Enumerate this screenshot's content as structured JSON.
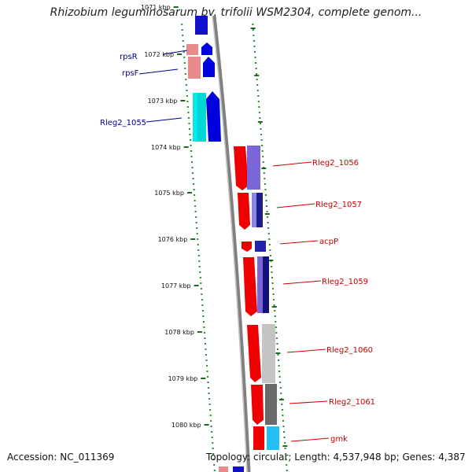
{
  "title": "Rhizobium leguminosarum bv. trifolii WSM2304, complete genom...",
  "footer": {
    "accession": "Accession: NC_011369",
    "summary": "Topology: circular; Length: 4,537,948 bp; Genes: 4,387"
  },
  "scale": {
    "unit": "kbp",
    "ticks": [
      {
        "label": "1071 kbp"
      },
      {
        "label": "1072 kbp"
      },
      {
        "label": "1073 kbp"
      },
      {
        "label": "1074 kbp"
      },
      {
        "label": "1075 kbp"
      },
      {
        "label": "1076 kbp"
      },
      {
        "label": "1077 kbp"
      },
      {
        "label": "1078 kbp"
      },
      {
        "label": "1079 kbp"
      },
      {
        "label": "1080 kbp"
      }
    ]
  },
  "genes": {
    "left": [
      {
        "label": "rpsR",
        "color": "#00008b"
      },
      {
        "label": "rpsF",
        "color": "#00008b"
      },
      {
        "label": "Rleg2_1055",
        "color": "#00008b"
      }
    ],
    "right": [
      {
        "label": "Rleg2_1056",
        "color": "#cc0000"
      },
      {
        "label": "Rleg2_1057",
        "color": "#cc0000"
      },
      {
        "label": "acpP",
        "color": "#cc0000"
      },
      {
        "label": "Rleg2_1059",
        "color": "#cc0000"
      },
      {
        "label": "Rleg2_1060",
        "color": "#cc0000"
      },
      {
        "label": "Rleg2_1061",
        "color": "#cc0000"
      },
      {
        "label": "gmk",
        "color": "#cc0000"
      }
    ]
  },
  "colors": {
    "forward_strand": "#ff0000",
    "reverse_strand": "#0000ff",
    "backbone": "#808080",
    "tick_dots": "#2a8a2a",
    "tick_marks": "#1a6b1a"
  }
}
